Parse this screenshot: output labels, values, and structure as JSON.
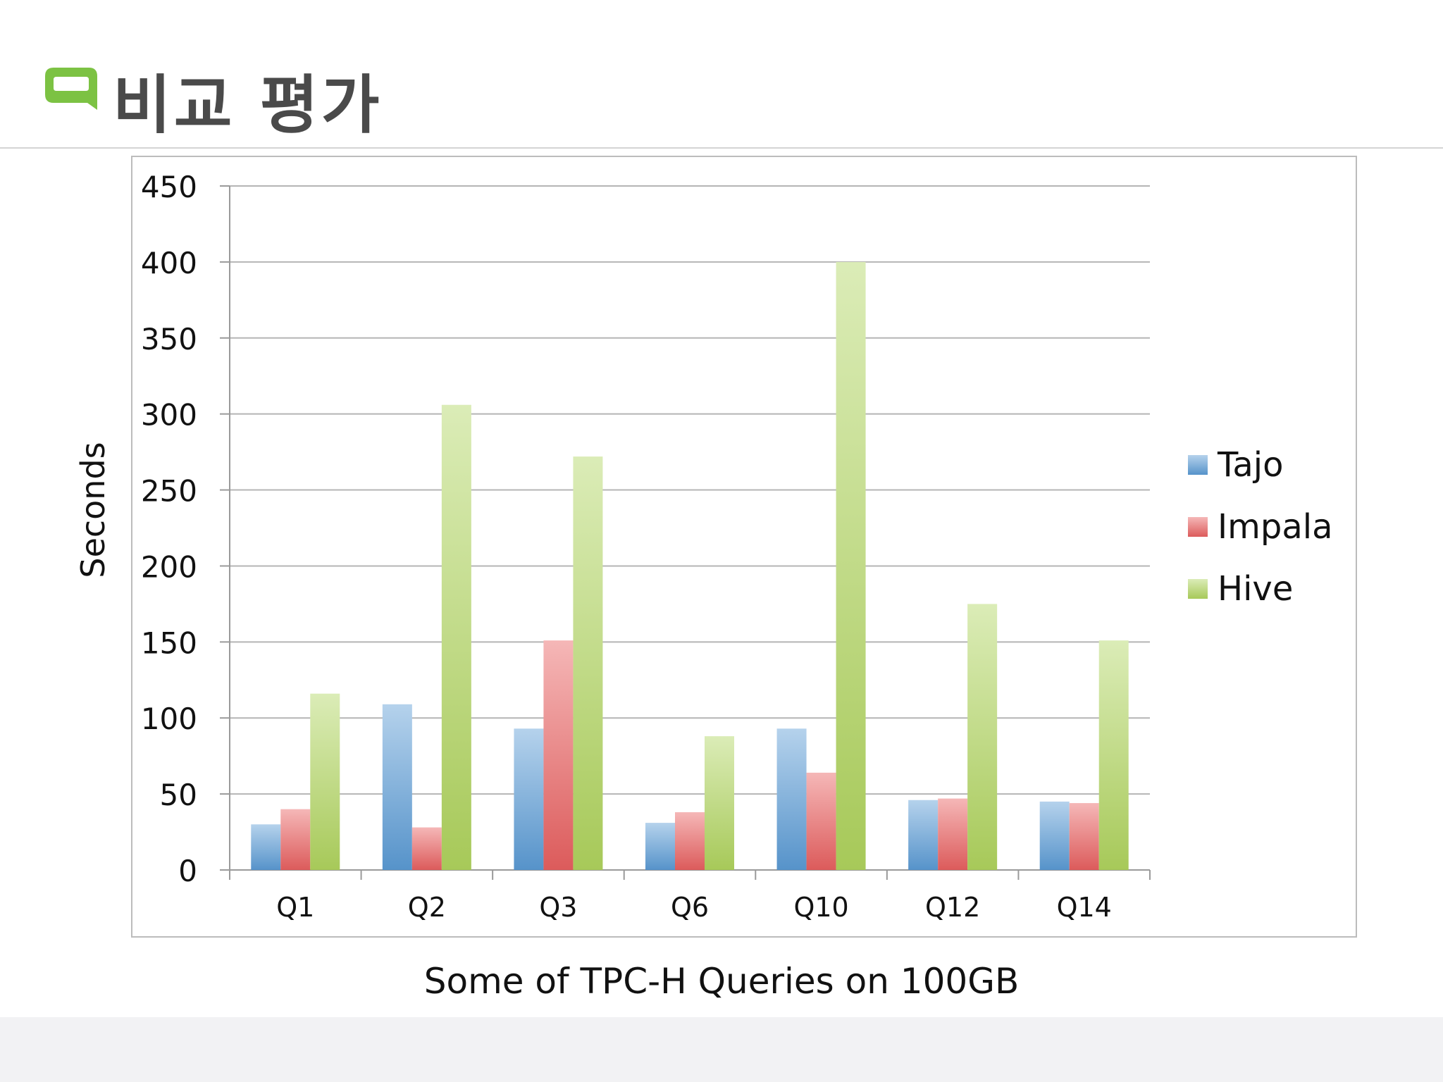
{
  "slide": {
    "title": "비교 평가",
    "subtitle": "Some of TPC-H Queries on 100GB",
    "logo_icon": "speech-bubble-icon",
    "logo_color": "#7cc243"
  },
  "chart_data": {
    "type": "bar",
    "title": "",
    "xlabel": "",
    "ylabel": "Seconds",
    "ylim": [
      0,
      450
    ],
    "yticks": [
      "0",
      "50",
      "100",
      "150",
      "200",
      "250",
      "300",
      "350",
      "400",
      "450"
    ],
    "grid": true,
    "legend_position": "right",
    "categories": [
      "Q1",
      "Q2",
      "Q3",
      "Q6",
      "Q10",
      "Q12",
      "Q14"
    ],
    "series": [
      {
        "name": "Tajo",
        "color": "#5b9bd5",
        "values": [
          30,
          109,
          93,
          31,
          93,
          46,
          45
        ]
      },
      {
        "name": "Impala",
        "color": "#e86060",
        "values": [
          40,
          28,
          151,
          38,
          64,
          47,
          44
        ]
      },
      {
        "name": "Hive",
        "color": "#b0d45e",
        "values": [
          116,
          306,
          272,
          88,
          400,
          175,
          151
        ]
      }
    ]
  }
}
